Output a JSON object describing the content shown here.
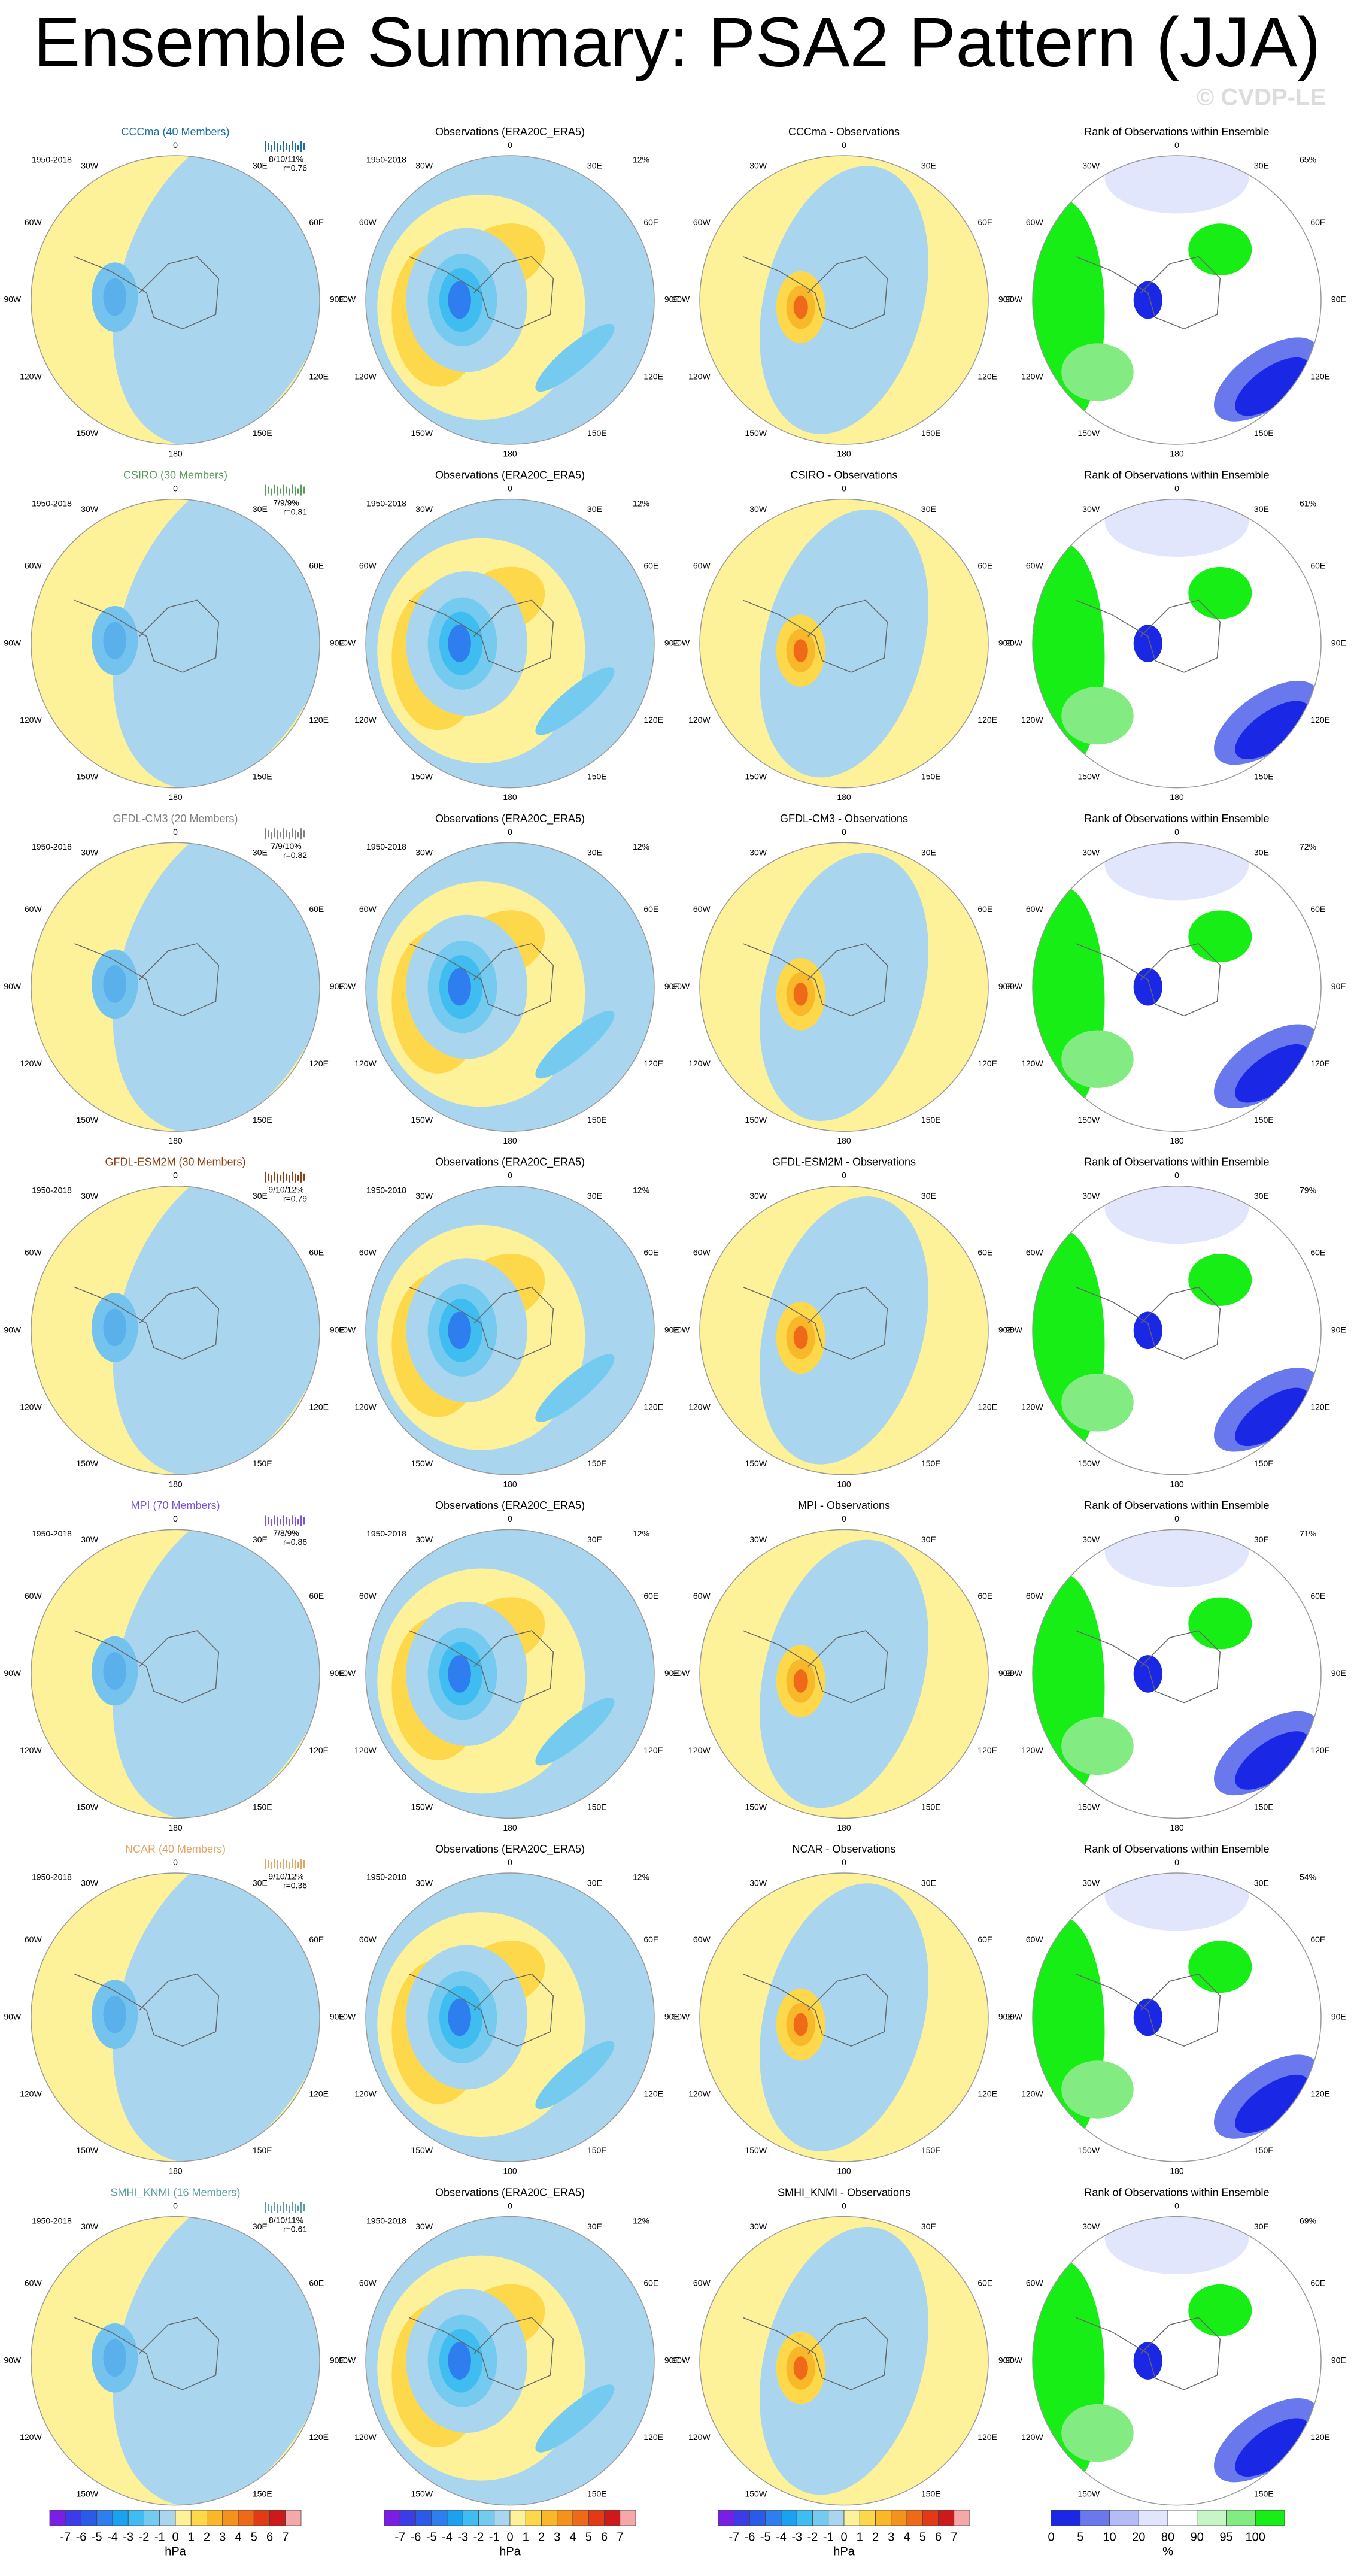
{
  "title": "Ensemble Summary: PSA2 Pattern (JJA)",
  "watermark": "© CVDP-LE",
  "period": "1950-2018",
  "obs_title": "Observations (ERA20C_ERA5)",
  "obs_pct": "12%",
  "rank_title": "Rank of Observations within Ensemble",
  "longitudes": [
    "0",
    "30E",
    "60E",
    "90E",
    "120E",
    "150E",
    "180",
    "150W",
    "120W",
    "90W",
    "60W",
    "30W"
  ],
  "rows": [
    {
      "model": "CCCma (40 Members)",
      "color": "#1f6fa3",
      "stats": "8/10/11%",
      "r": "r=0.76",
      "diff_title": "CCCma - Observations",
      "rank_pct": "65%"
    },
    {
      "model": "CSIRO (30 Members)",
      "color": "#5a9a5a",
      "stats": "7/9/9%",
      "r": "r=0.81",
      "diff_title": "CSIRO - Observations",
      "rank_pct": "61%"
    },
    {
      "model": "GFDL-CM3 (20 Members)",
      "color": "#808080",
      "stats": "7/9/10%",
      "r": "r=0.82",
      "diff_title": "GFDL-CM3 - Observations",
      "rank_pct": "72%"
    },
    {
      "model": "GFDL-ESM2M (30 Members)",
      "color": "#8b3f12",
      "stats": "9/10/12%",
      "r": "r=0.79",
      "diff_title": "GFDL-ESM2M - Observations",
      "rank_pct": "79%"
    },
    {
      "model": "MPI (70 Members)",
      "color": "#7b55d6",
      "stats": "7/8/9%",
      "r": "r=0.86",
      "diff_title": "MPI - Observations",
      "rank_pct": "71%"
    },
    {
      "model": "NCAR (40 Members)",
      "color": "#e0a868",
      "stats": "9/10/12%",
      "r": "r=0.36",
      "diff_title": "NCAR - Observations",
      "rank_pct": "54%"
    },
    {
      "model": "SMHI_KNMI (16 Members)",
      "color": "#5f9ea0",
      "stats": "8/10/11%",
      "r": "r=0.61",
      "diff_title": "SMHI_KNMI - Observations",
      "rank_pct": "69%"
    }
  ],
  "colorbars": {
    "hpa": {
      "labels": [
        "-7",
        "-6",
        "-5",
        "-4",
        "-3",
        "-2",
        "-1",
        "0",
        "1",
        "2",
        "3",
        "4",
        "5",
        "6",
        "7"
      ],
      "unit": "hPa",
      "colors": [
        "#7a1ee6",
        "#3b3be8",
        "#2a5ae8",
        "#2f7ef0",
        "#1aa2f0",
        "#3fbdf0",
        "#74cbef",
        "#a9d6ee",
        "#fdf29a",
        "#fcd84a",
        "#f8b82a",
        "#f4921e",
        "#ee6a18",
        "#e23a16",
        "#cc1a1a",
        "#f5a8a8"
      ]
    },
    "rank": {
      "labels": [
        "0",
        "5",
        "10",
        "20",
        "80",
        "90",
        "95",
        "100"
      ],
      "unit": "%",
      "colors": [
        "#1a28e6",
        "#6a78ee",
        "#b4bcf6",
        "#e2e6fc",
        "#ffffff",
        "#c6f5c6",
        "#82ec82",
        "#16ee16"
      ]
    }
  }
}
